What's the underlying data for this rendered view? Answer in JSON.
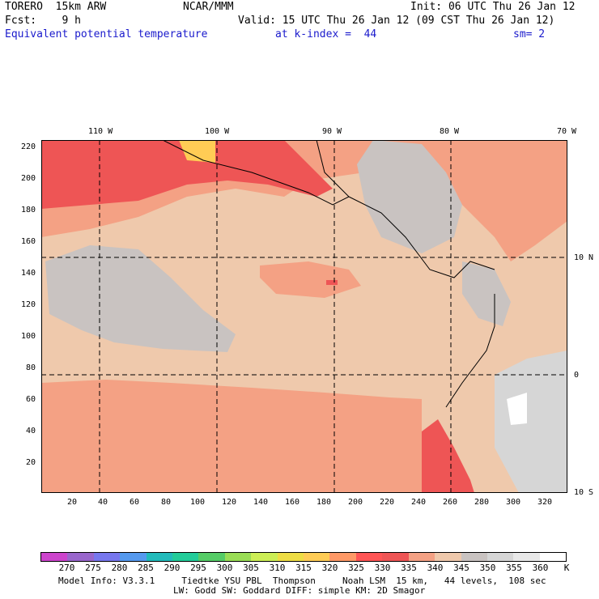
{
  "header": {
    "line1_left": "TORERO  15km ARW",
    "line1_mid": "NCAR/MMM",
    "line1_right": "Init: 06 UTC Thu 26 Jan 12",
    "line2_left": "Fcst:    9 h",
    "line2_right": "Valid: 15 UTC Thu 26 Jan 12 (09 CST Thu 26 Jan 12)",
    "line3_field": "Equivalent potential temperature",
    "line3_level": "at k-index =  44",
    "line3_sm": "sm= 2"
  },
  "map": {
    "top_lon_labels": [
      "110 W",
      "100 W",
      "90 W",
      "80 W",
      "70 W"
    ],
    "right_lat_labels": [
      "10 N",
      "0",
      "10 S"
    ],
    "left_y_ticks": [
      "220",
      "200",
      "180",
      "160",
      "140",
      "120",
      "100",
      "80",
      "60",
      "40",
      "20"
    ],
    "bottom_x_ticks": [
      "20",
      "40",
      "60",
      "80",
      "100",
      "120",
      "140",
      "160",
      "180",
      "200",
      "220",
      "240",
      "260",
      "280",
      "300",
      "320"
    ]
  },
  "colorbar": {
    "labels": [
      "270",
      "275",
      "280",
      "285",
      "290",
      "295",
      "300",
      "305",
      "310",
      "315",
      "320",
      "325",
      "330",
      "335",
      "340",
      "345",
      "350",
      "355",
      "360"
    ],
    "unit": "K",
    "colors": [
      "#cc44cc",
      "#9966cc",
      "#7777ee",
      "#5599ee",
      "#22bbbb",
      "#22cc99",
      "#55cc66",
      "#99dd55",
      "#ccee55",
      "#eedd44",
      "#ffcc55",
      "#ff9966",
      "#ff5555",
      "#ee5555",
      "#f4a184",
      "#efc9ac",
      "#c9c3c1",
      "#d6d6d6",
      "#e8e8e8",
      "#ffffff"
    ]
  },
  "footer": {
    "line1": "Model Info: V3.3.1     Tiedtke YSU PBL  Thompson     Noah LSM  15 km,   44 levels,  108 sec",
    "line2": "LW: Godd SW: Goddard DIFF: simple KM: 2D Smagor"
  }
}
